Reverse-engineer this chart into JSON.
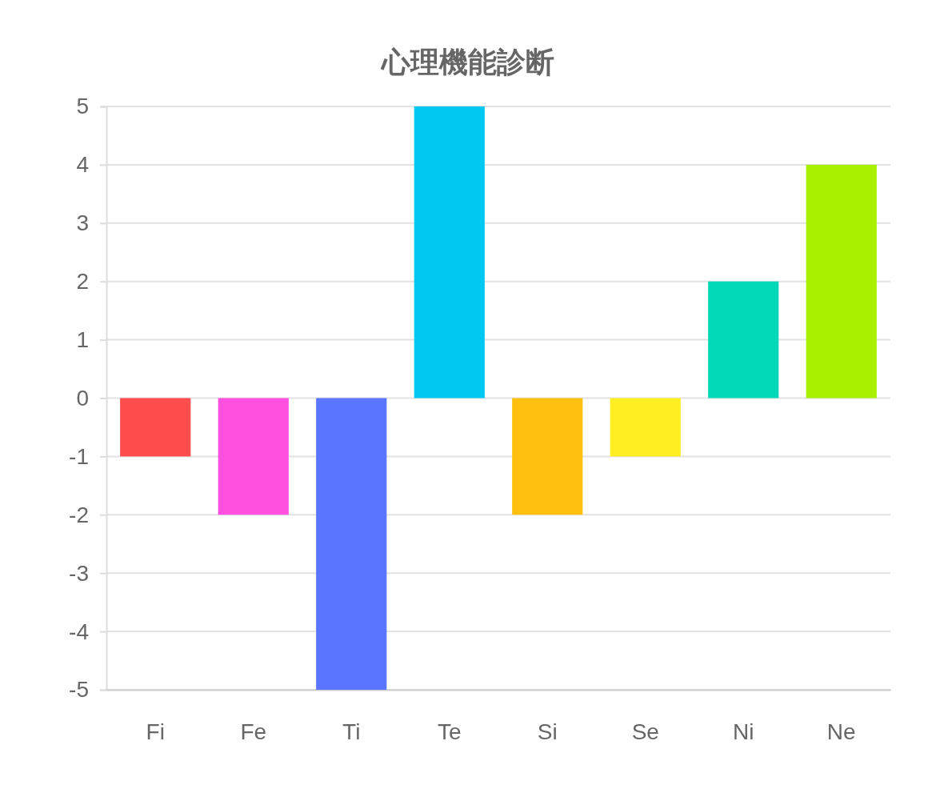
{
  "chart_data": {
    "type": "bar",
    "title": "心理機能診断",
    "categories": [
      "Fi",
      "Fe",
      "Ti",
      "Te",
      "Si",
      "Se",
      "Ni",
      "Ne"
    ],
    "values": [
      -1,
      -2,
      -5,
      5,
      -2,
      -1,
      2,
      4
    ],
    "colors": [
      "#ff4d4d",
      "#ff50e0",
      "#5a75ff",
      "#00c8f0",
      "#ffc010",
      "#ffee22",
      "#00d8b8",
      "#a8f000"
    ],
    "ylim": [
      -5,
      5
    ],
    "yticks": [
      -5,
      -4,
      -3,
      -2,
      -1,
      0,
      1,
      2,
      3,
      4,
      5
    ],
    "grid": "y"
  }
}
